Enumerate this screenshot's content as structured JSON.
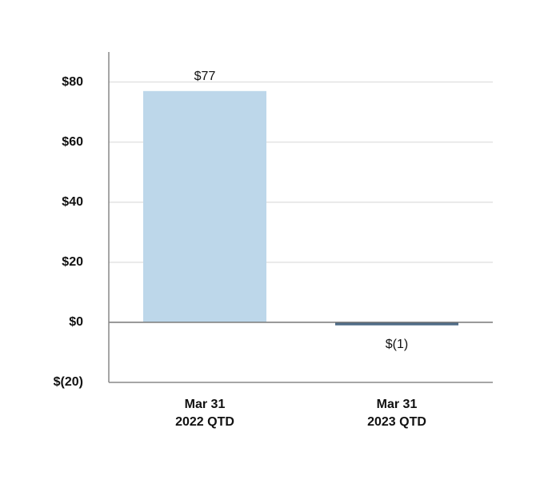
{
  "chart_data": {
    "type": "bar",
    "categories": [
      [
        "Mar 31",
        "2022 QTD"
      ],
      [
        "Mar 31",
        "2023 QTD"
      ]
    ],
    "series": [
      {
        "values": [
          77,
          -1
        ],
        "value_labels": [
          "$77",
          "$(1)"
        ],
        "colors": [
          "#bdd7ea",
          "#4d6a86"
        ]
      }
    ],
    "ylim": [
      -20,
      90
    ],
    "yticks": [
      {
        "value": -20,
        "label": "$(20)"
      },
      {
        "value": 0,
        "label": "$0"
      },
      {
        "value": 20,
        "label": "$20"
      },
      {
        "value": 40,
        "label": "$40"
      },
      {
        "value": 60,
        "label": "$60"
      },
      {
        "value": 80,
        "label": "$80"
      }
    ],
    "grid": true
  }
}
